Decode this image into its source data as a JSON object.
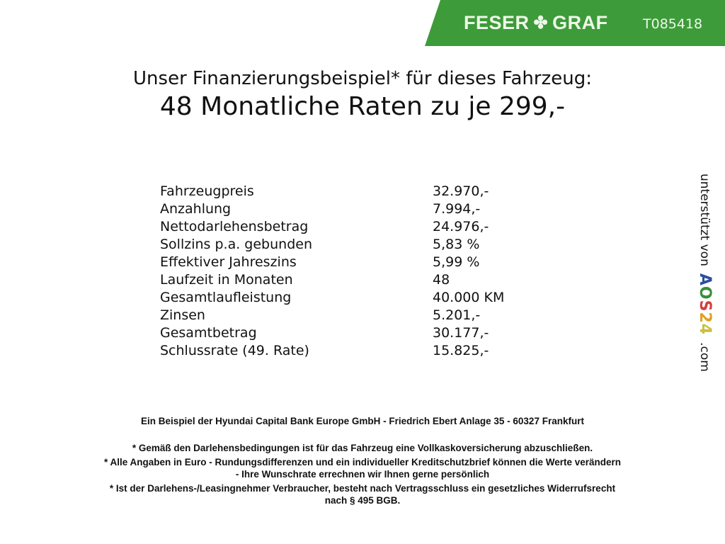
{
  "header": {
    "brand": "FESER GRAF",
    "brand_left": "FESER",
    "brand_right": "GRAF",
    "code": "T085418",
    "color": "#3d9b3a"
  },
  "title": {
    "line1": "Unser Finanzierungsbeispiel* für dieses Fahrzeug:",
    "line2": "48 Monatliche Raten zu je 299,-"
  },
  "rows": [
    {
      "label": "Fahrzeugpreis",
      "value": "32.970,-"
    },
    {
      "label": "Anzahlung",
      "value": "7.994,-"
    },
    {
      "label": "Nettodarlehensbetrag",
      "value": "24.976,-"
    },
    {
      "label": "Sollzins p.a. gebunden",
      "value": "5,83 %"
    },
    {
      "label": "Effektiver Jahreszins",
      "value": "5,99 %"
    },
    {
      "label": "Laufzeit in Monaten",
      "value": "48"
    },
    {
      "label": "Gesamtlaufleistung",
      "value": "40.000 KM"
    },
    {
      "label": "Zinsen",
      "value": "5.201,-"
    },
    {
      "label": "Gesamtbetrag",
      "value": "30.177,-"
    },
    {
      "label": "Schlussrate (49. Rate)",
      "value": "15.825,-"
    }
  ],
  "footer": {
    "bank": "Ein Beispiel der Hyundai Capital Bank Europe GmbH - Friedrich Ebert Anlage 35 - 60327 Frankfurt",
    "note1": "* Gemäß den Darlehensbedingungen ist für das Fahrzeug eine Vollkaskoversicherung abzuschließen.",
    "note2a": "* Alle Angaben in Euro - Rundungsdifferenzen und ein individueller Kreditschutzbrief können die Werte verändern",
    "note2b": "- Ihre Wunschrate errechnen wir Ihnen gerne persönlich",
    "note3a": "* Ist der Darlehens-/Leasingnehmer Verbraucher, besteht nach Vertragsschluss ein gesetzliches Widerrufsrecht",
    "note3b": "nach § 495 BGB."
  },
  "side": {
    "text": "unterstützt von",
    "logo": "AOS24",
    "suffix": ".com"
  }
}
